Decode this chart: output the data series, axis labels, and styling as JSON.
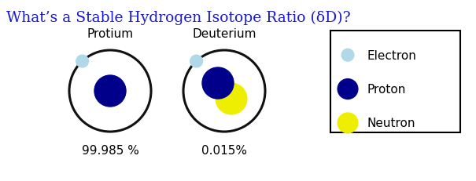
{
  "title": "What’s a Stable Hydrogen Isotope Ratio (δD)?",
  "title_color": "#1a1acc",
  "title_fontsize": 13.5,
  "title_fontweight": "normal",
  "title_fontfamily": "serif",
  "bg_color": "#ffffff",
  "atom1_label": "Protium",
  "atom2_label": "Deuterium",
  "atom1_pct": "99.985 %",
  "atom2_pct": "0.015%",
  "label_fontsize": 11,
  "pct_fontsize": 11,
  "electron_color": "#b0d8e8",
  "proton_color": "#00008b",
  "neutron_color": "#eeee00",
  "neutron_edge_color": "#cccc00",
  "orbit_color": "#111111",
  "orbit_lw": 2.2,
  "legend_labels": [
    "Electron",
    "Proton",
    "Neutron"
  ],
  "legend_colors": [
    "#b0d8e8",
    "#00008b",
    "#eeee00"
  ],
  "legend_edge_colors": [
    "#88bbcc",
    "#00008b",
    "#cccc00"
  ],
  "legend_fontsize": 11
}
